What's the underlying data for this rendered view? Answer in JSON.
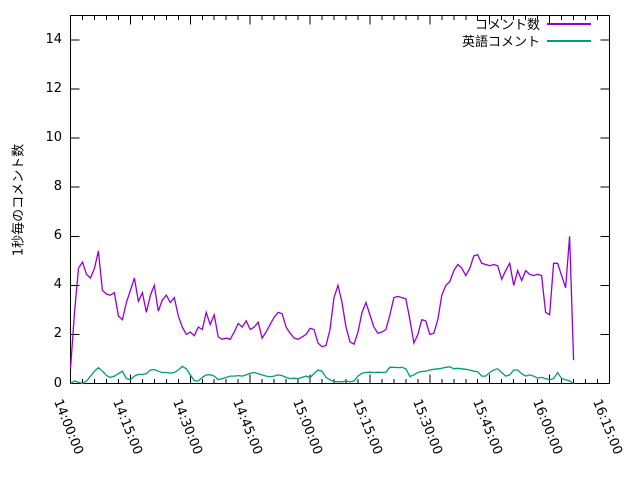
{
  "chart_data": {
    "type": "line",
    "title": "",
    "xlabel": "",
    "ylabel": "1秒毎のコメント数",
    "background": "#ffffff",
    "axis_color": "#000000",
    "grid": false,
    "ylim": [
      0,
      15
    ],
    "ytick_values": [
      0,
      2,
      4,
      6,
      8,
      10,
      12,
      14
    ],
    "ytick_labels": [
      "0",
      "2",
      "4",
      "6",
      "8",
      "10",
      "12",
      "14"
    ],
    "x_minutes_range": [
      0,
      135
    ],
    "xtick_step_minutes": 15,
    "xtick_minor_step_minutes": 3,
    "xtick_labels": [
      "14:00:00",
      "14:15:00",
      "14:30:00",
      "14:45:00",
      "15:00:00",
      "15:15:00",
      "15:30:00",
      "15:45:00",
      "16:00:00",
      "16:15:00"
    ],
    "legend": {
      "position": "top-right",
      "entries": [
        {
          "label": "コメント数",
          "color": "#9400d3"
        },
        {
          "label": "英語コメント",
          "color": "#009e73"
        }
      ]
    },
    "series": [
      {
        "name": "コメント数",
        "color": "#9400d3",
        "start_minute": 0,
        "step_minutes": 1,
        "values": [
          0.6,
          2.9,
          4.7,
          4.95,
          4.45,
          4.3,
          4.7,
          5.4,
          3.8,
          3.65,
          3.6,
          3.7,
          2.75,
          2.6,
          3.3,
          3.8,
          4.3,
          3.35,
          3.7,
          2.9,
          3.6,
          4.0,
          2.95,
          3.4,
          3.6,
          3.3,
          3.5,
          2.75,
          2.3,
          2.0,
          2.1,
          1.95,
          2.3,
          2.2,
          2.9,
          2.4,
          2.8,
          1.9,
          1.8,
          1.85,
          1.8,
          2.1,
          2.45,
          2.3,
          2.55,
          2.2,
          2.3,
          2.5,
          1.85,
          2.1,
          2.4,
          2.7,
          2.9,
          2.85,
          2.3,
          2.05,
          1.85,
          1.8,
          1.9,
          2.0,
          2.25,
          2.2,
          1.65,
          1.5,
          1.55,
          2.2,
          3.5,
          4.0,
          3.3,
          2.3,
          1.7,
          1.6,
          2.1,
          2.9,
          3.3,
          2.8,
          2.3,
          2.05,
          2.1,
          2.2,
          2.8,
          3.5,
          3.55,
          3.5,
          3.45,
          2.6,
          1.65,
          2.0,
          2.6,
          2.55,
          2.0,
          2.05,
          2.6,
          3.6,
          4.0,
          4.15,
          4.6,
          4.85,
          4.7,
          4.4,
          4.7,
          5.2,
          5.25,
          4.9,
          4.85,
          4.8,
          4.85,
          4.8,
          4.25,
          4.6,
          4.9,
          4.0,
          4.6,
          4.2,
          4.6,
          4.45,
          4.4,
          4.45,
          4.4,
          2.9,
          2.8,
          4.9,
          4.9,
          4.4,
          3.9,
          6.0,
          0.95
        ]
      },
      {
        "name": "英語コメント",
        "color": "#009e73",
        "start_minute": 0,
        "step_minutes": 1,
        "values": [
          0.0,
          0.1,
          0.05,
          0.0,
          0.1,
          0.3,
          0.5,
          0.65,
          0.5,
          0.33,
          0.25,
          0.3,
          0.4,
          0.5,
          0.2,
          0.16,
          0.3,
          0.37,
          0.37,
          0.4,
          0.55,
          0.57,
          0.5,
          0.45,
          0.45,
          0.42,
          0.45,
          0.55,
          0.7,
          0.6,
          0.35,
          0.12,
          0.1,
          0.25,
          0.35,
          0.36,
          0.3,
          0.16,
          0.2,
          0.25,
          0.3,
          0.3,
          0.32,
          0.3,
          0.35,
          0.42,
          0.45,
          0.4,
          0.35,
          0.3,
          0.28,
          0.3,
          0.35,
          0.32,
          0.25,
          0.2,
          0.22,
          0.2,
          0.25,
          0.3,
          0.24,
          0.4,
          0.55,
          0.5,
          0.25,
          0.15,
          0.08,
          0.07,
          0.07,
          0.1,
          0.07,
          0.1,
          0.3,
          0.42,
          0.45,
          0.46,
          0.45,
          0.46,
          0.45,
          0.46,
          0.66,
          0.66,
          0.65,
          0.66,
          0.6,
          0.28,
          0.35,
          0.45,
          0.49,
          0.5,
          0.55,
          0.58,
          0.6,
          0.62,
          0.66,
          0.68,
          0.6,
          0.62,
          0.6,
          0.58,
          0.55,
          0.5,
          0.48,
          0.3,
          0.3,
          0.45,
          0.55,
          0.6,
          0.45,
          0.3,
          0.35,
          0.55,
          0.55,
          0.4,
          0.3,
          0.35,
          0.3,
          0.22,
          0.25,
          0.2,
          0.15,
          0.2,
          0.45,
          0.2,
          0.15,
          0.1,
          0.0
        ]
      }
    ]
  }
}
